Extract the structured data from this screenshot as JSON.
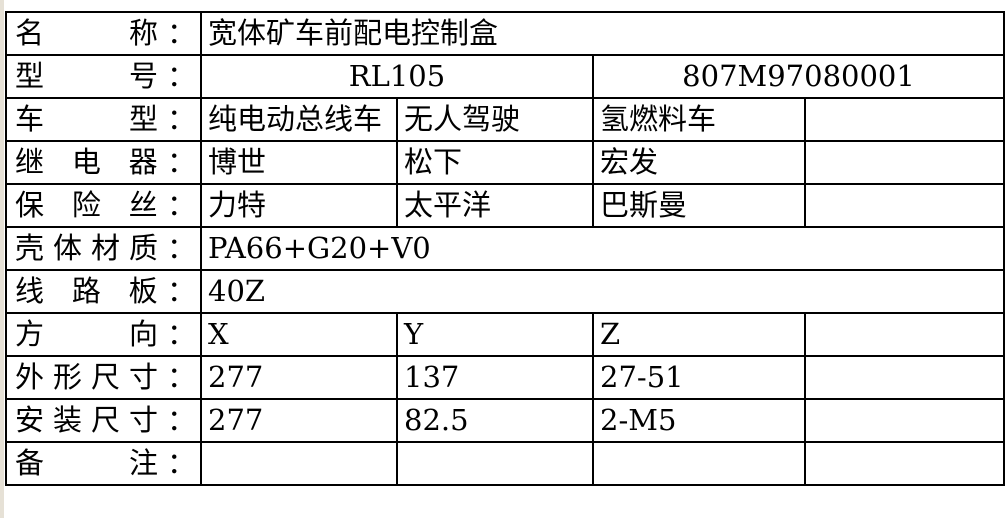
{
  "rows": [
    {
      "label": "名　　称：",
      "cells": [
        "宽体矿车前配电控制盒"
      ]
    },
    {
      "label": "型　　号：",
      "cells": [
        "RL105",
        "807M97080001"
      ]
    },
    {
      "label": "车　　型：",
      "cells": [
        "纯电动总线车",
        "无人驾驶",
        "氢燃料车",
        ""
      ]
    },
    {
      "label": "继 电 器：",
      "cells": [
        "博世",
        "松下",
        "宏发",
        ""
      ]
    },
    {
      "label": "保 险 丝：",
      "cells": [
        "力特",
        "太平洋",
        "巴斯曼",
        ""
      ]
    },
    {
      "label": "壳体材质：",
      "cells": [
        "PA66+G20+V0"
      ]
    },
    {
      "label": "线 路 板：",
      "cells": [
        "40Z"
      ]
    },
    {
      "label": "方　　向：",
      "cells": [
        "X",
        "Y",
        "Z",
        ""
      ]
    },
    {
      "label": "外形尺寸：",
      "cells": [
        "277",
        "137",
        "27-51",
        ""
      ]
    },
    {
      "label": "安装尺寸：",
      "cells": [
        "277",
        "82.5",
        "2-M5",
        ""
      ]
    },
    {
      "label": "备　　注：",
      "cells": [
        "",
        "",
        "",
        ""
      ]
    }
  ]
}
